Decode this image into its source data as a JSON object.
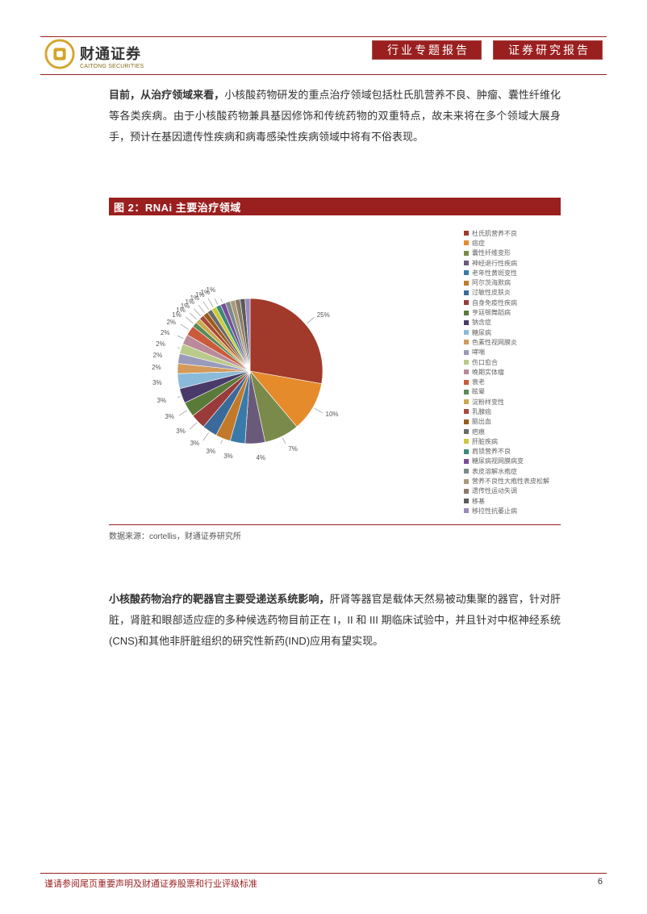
{
  "header": {
    "logo_cn": "财通证券",
    "logo_en": "CAITONG SECURITIES",
    "tag1": "行业专题报告",
    "tag2": "证券研究报告"
  },
  "para1": {
    "lead": "目前，从治疗领域来看，",
    "rest": "小核酸药物研发的重点治疗领域包括杜氏肌营养不良、肿瘤、囊性纤维化等各类疾病。由于小核酸药物兼具基因修饰和传统药物的双重特点，故未来将在多个领域大展身手，预计在基因遗传性疾病和病毒感染性疾病领域中将有不俗表现。"
  },
  "figure": {
    "title": "图 2：RNAi 主要治疗领域",
    "source": "数据来源：cortellis，财通证券研究所",
    "type": "pie",
    "background_color": "#ffffff",
    "label_fontsize": 8,
    "pie_radius": 90,
    "slices": [
      {
        "label": "杜氏肌营养不良",
        "value": 25,
        "color": "#a13a2a",
        "show_pct": "25%"
      },
      {
        "label": "癌症",
        "value": 10,
        "color": "#e58b2b",
        "show_pct": "10%"
      },
      {
        "label": "囊性纤维变形",
        "value": 7,
        "color": "#7a8a4a",
        "show_pct": "7%"
      },
      {
        "label": "神经退行性疾病",
        "value": 4,
        "color": "#6a5a7a",
        "show_pct": "4%"
      },
      {
        "label": "老年性黄斑变性",
        "value": 3,
        "color": "#3a7aaa",
        "show_pct": "3%"
      },
      {
        "label": "阿尔茨海默病",
        "value": 3,
        "color": "#c27a2a",
        "show_pct": "3%"
      },
      {
        "label": "过敏性皮肤炎",
        "value": 3,
        "color": "#3a6a9a",
        "show_pct": "3%"
      },
      {
        "label": "自身免疫性疾病",
        "value": 3,
        "color": "#9a3a3a",
        "show_pct": "3%"
      },
      {
        "label": "亨廷顿舞蹈病",
        "value": 3,
        "color": "#5a7a3a",
        "show_pct": "3%"
      },
      {
        "label": "钠含症",
        "value": 3,
        "color": "#4a3a6a",
        "show_pct": "3%"
      },
      {
        "label": "糖尿病",
        "value": 3,
        "color": "#8abada",
        "show_pct": "3%"
      },
      {
        "label": "色素性视网膜炎",
        "value": 2,
        "color": "#d49a5a",
        "show_pct": "2%"
      },
      {
        "label": "哮喘",
        "value": 2,
        "color": "#9a9aba",
        "show_pct": "2%"
      },
      {
        "label": "伤口愈合",
        "value": 2,
        "color": "#baca8a",
        "show_pct": "2%"
      },
      {
        "label": "晚期实体瘤",
        "value": 2,
        "color": "#ba8a9a",
        "show_pct": "2%"
      },
      {
        "label": "衰老",
        "value": 2,
        "color": "#ca5a3a",
        "show_pct": "2%"
      },
      {
        "label": "眩晕",
        "value": 1,
        "color": "#5a8a5a",
        "show_pct": "1%"
      },
      {
        "label": "淀粉样变性",
        "value": 1,
        "color": "#caaa4a",
        "show_pct": "1%"
      },
      {
        "label": "乳腺癌",
        "value": 1,
        "color": "#aa4a3a",
        "show_pct": "1%"
      },
      {
        "label": "脑出血",
        "value": 1,
        "color": "#9a5a1a",
        "show_pct": "1%"
      },
      {
        "label": "疤痕",
        "value": 1,
        "color": "#6a6a6a",
        "show_pct": "1%"
      },
      {
        "label": "肝脏疾病",
        "value": 1,
        "color": "#caca3a",
        "show_pct": "1%"
      },
      {
        "label": "肩锁营养不良",
        "value": 1,
        "color": "#3a8a7a",
        "show_pct": "1%"
      },
      {
        "label": "糖尿病视网膜病变",
        "value": 1,
        "color": "#7a4a9a",
        "show_pct": "1%"
      },
      {
        "label": "表皮溶解水疱症",
        "value": 1,
        "color": "#7a8a8a",
        "show_pct": ""
      },
      {
        "label": "营养不良性大疱性表皮松解",
        "value": 1,
        "color": "#aa9a7a",
        "show_pct": ""
      },
      {
        "label": "遗传性运动失调",
        "value": 1,
        "color": "#8a7a6a",
        "show_pct": ""
      },
      {
        "label": "移基",
        "value": 1,
        "color": "#5a5a5a",
        "show_pct": ""
      },
      {
        "label": "移拉性抗萎止病",
        "value": 1,
        "color": "#9a8aba",
        "show_pct": ""
      }
    ]
  },
  "para2": {
    "lead": "小核酸药物治疗的靶器官主要受递送系统影响，",
    "rest": "肝肾等器官是载体天然易被动集聚的器官，针对肝脏，肾脏和眼部适应症的多种候选药物目前正在 I，II 和 III 期临床试验中，并且针对中枢神经系统(CNS)和其他非肝脏组织的研究性新药(IND)应用有望实现。"
  },
  "footer": {
    "left": "谨请参阅尾页重要声明及财通证券股票和行业评级标准",
    "page_no": "6"
  },
  "colors": {
    "brand_red": "#9a1f1f",
    "logo_gold": "#d4a42a"
  }
}
